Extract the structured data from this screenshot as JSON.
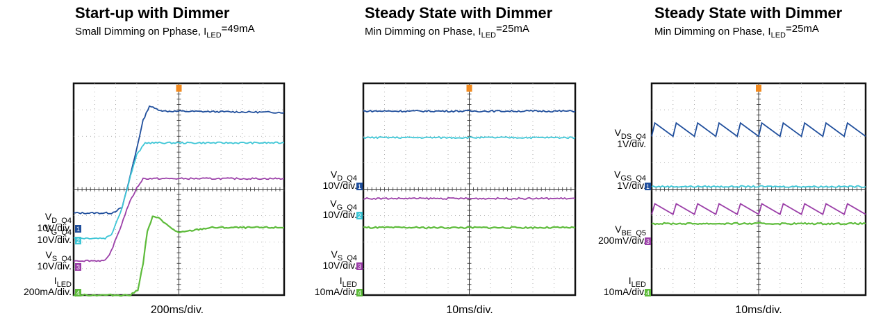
{
  "chart_data": [
    {
      "type": "line",
      "title": "Start-up with Dimmer",
      "subtitle": {
        "pre": "Small Dimming on Pphase, I",
        "sub": "LED",
        "post": "=49mA"
      },
      "xlabel": "200ms/div.",
      "grid": true,
      "trigger_marker": true,
      "xlim": [
        0,
        10
      ],
      "ylim": [
        0,
        8
      ],
      "series": [
        {
          "id": "vd",
          "color": "#1f4e9c",
          "points": [
            [
              0,
              3.1
            ],
            [
              1.8,
              3.1
            ],
            [
              2.3,
              3.3
            ],
            [
              2.5,
              3.9
            ],
            [
              2.9,
              5.2
            ],
            [
              3.3,
              6.6
            ],
            [
              3.6,
              7.15
            ],
            [
              3.85,
              7.05
            ],
            [
              4.3,
              6.95
            ],
            [
              10,
              6.9
            ]
          ]
        },
        {
          "id": "vg",
          "color": "#3ec6d6",
          "points": [
            [
              0,
              2.15
            ],
            [
              1.5,
              2.15
            ],
            [
              1.8,
              2.3
            ],
            [
              2.3,
              3.3
            ],
            [
              2.7,
              4.5
            ],
            [
              3.0,
              5.3
            ],
            [
              3.4,
              5.75
            ],
            [
              10,
              5.75
            ]
          ]
        },
        {
          "id": "vs",
          "color": "#9b3fa8",
          "points": [
            [
              0,
              1.3
            ],
            [
              1.5,
              1.3
            ],
            [
              1.7,
              1.5
            ],
            [
              2.2,
              2.5
            ],
            [
              2.6,
              3.4
            ],
            [
              3.0,
              4.05
            ],
            [
              3.3,
              4.4
            ],
            [
              10,
              4.4
            ]
          ]
        },
        {
          "id": "iled",
          "color": "#5dbb3a",
          "points": [
            [
              0,
              0
            ],
            [
              2.7,
              0
            ],
            [
              3.05,
              0.2
            ],
            [
              3.3,
              1.2
            ],
            [
              3.5,
              2.4
            ],
            [
              3.75,
              2.95
            ],
            [
              4.1,
              2.9
            ],
            [
              4.5,
              2.6
            ],
            [
              5,
              2.35
            ],
            [
              5.7,
              2.45
            ],
            [
              6.5,
              2.55
            ],
            [
              10,
              2.55
            ]
          ]
        }
      ],
      "channel_labels": [
        {
          "main": "V",
          "sub": "D_Q4",
          "scale": "10V/div.",
          "ch": "1",
          "color": "#1f4e9c"
        },
        {
          "main": "V",
          "sub": "G_Q4",
          "scale": "10V/div.",
          "ch": "2",
          "color": "#3ec6d6"
        },
        {
          "main": "V",
          "sub": "S_Q4",
          "scale": "10V/div.",
          "ch": "3",
          "color": "#9b3fa8"
        },
        {
          "main": "I",
          "sub": "LED",
          "scale": "200mA/div.",
          "ch": "4",
          "color": "#5dbb3a"
        }
      ]
    },
    {
      "type": "line",
      "title": "Steady State with Dimmer",
      "subtitle": {
        "pre": "Min Dimming on Phase, I",
        "sub": "LED",
        "post": "=25mA"
      },
      "xlabel": "10ms/div.",
      "grid": true,
      "trigger_marker": true,
      "xlim": [
        0,
        10
      ],
      "ylim": [
        0,
        8
      ],
      "series": [
        {
          "id": "vd",
          "color": "#1f4e9c",
          "points": [
            [
              0,
              6.95
            ],
            [
              10,
              6.95
            ]
          ]
        },
        {
          "id": "vg",
          "color": "#3ec6d6",
          "points": [
            [
              0,
              5.95
            ],
            [
              10,
              5.95
            ]
          ]
        },
        {
          "id": "vs",
          "color": "#9b3fa8",
          "points": [
            [
              0,
              3.65
            ],
            [
              10,
              3.65
            ]
          ]
        },
        {
          "id": "iled",
          "color": "#5dbb3a",
          "points": [
            [
              0,
              2.55
            ],
            [
              10,
              2.55
            ]
          ]
        }
      ],
      "channel_labels": [
        {
          "main": "V",
          "sub": "D_Q4",
          "scale": "10V/div.",
          "ch": "1",
          "color": "#1f4e9c"
        },
        {
          "main": "V",
          "sub": "G_Q4",
          "scale": "10V/div.",
          "ch": "2",
          "color": "#3ec6d6"
        },
        {
          "main": "V",
          "sub": "S_Q4",
          "scale": "10V/div.",
          "ch": "3",
          "color": "#9b3fa8"
        },
        {
          "main": "I",
          "sub": "LED",
          "scale": "10mA/div.",
          "ch": "4",
          "color": "#5dbb3a"
        }
      ]
    },
    {
      "type": "line",
      "title": "Steady State with Dimmer",
      "subtitle": {
        "pre": "Min Dimming on Phase, I",
        "sub": "LED",
        "post": "=25mA"
      },
      "xlabel": "10ms/div.",
      "grid": true,
      "trigger_marker": true,
      "xlim": [
        0,
        10
      ],
      "ylim": [
        0,
        8
      ],
      "series": [
        {
          "id": "vds",
          "color": "#1f4e9c",
          "sawtooth": {
            "low": 6.0,
            "high": 6.5,
            "periods": 10
          }
        },
        {
          "id": "vgs",
          "color": "#3ec6d6",
          "points": [
            [
              0,
              4.1
            ],
            [
              10,
              4.1
            ]
          ]
        },
        {
          "id": "vs",
          "color": "#9b3fa8",
          "sawtooth": {
            "low": 3.05,
            "high": 3.45,
            "periods": 10
          }
        },
        {
          "id": "vbe",
          "color": "#5dbb3a",
          "points": [
            [
              0,
              2.7
            ],
            [
              10,
              2.7
            ]
          ]
        }
      ],
      "channel_labels": [
        {
          "main": "V",
          "sub": "DS_Q4",
          "scale": "1V/div.",
          "ch": "",
          "color": "#1f4e9c"
        },
        {
          "main": "V",
          "sub": "GS_Q4",
          "scale": "1V/div.",
          "ch": "1",
          "color": "#1f4e9c"
        },
        {
          "main": "V",
          "sub": "BE_Q5",
          "scale": "200mV/div.",
          "ch": "3",
          "color": "#9b3fa8"
        },
        {
          "main": "I",
          "sub": "LED",
          "scale": "10mA/div.",
          "ch": "4",
          "color": "#5dbb3a"
        }
      ]
    }
  ]
}
